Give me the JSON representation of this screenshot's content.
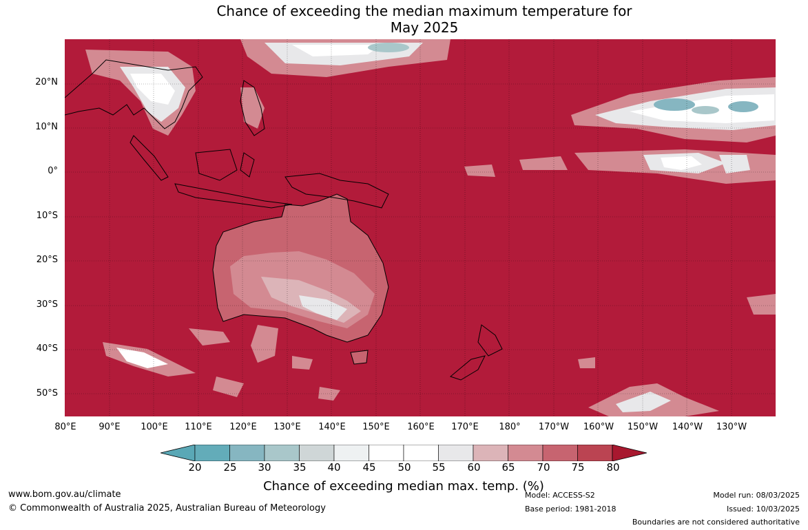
{
  "title": {
    "line1": "Chance of exceeding the median maximum temperature for",
    "line2": "May 2025"
  },
  "map": {
    "background_color": "#b21b3a",
    "lat_labels": [
      "20°N",
      "10°N",
      "0°",
      "10°S",
      "20°S",
      "30°S",
      "40°S",
      "50°S"
    ],
    "lon_labels": [
      "80°E",
      "90°E",
      "100°E",
      "110°E",
      "120°E",
      "130°E",
      "140°E",
      "150°E",
      "160°E",
      "170°E",
      "180°",
      "170°W",
      "160°W",
      "150°W",
      "140°W",
      "130°W"
    ],
    "regions": [
      "Australia",
      "New Zealand",
      "Papua New Guinea",
      "Indonesia",
      "Southeast Asia"
    ]
  },
  "colorbar": {
    "ticks": [
      "20",
      "25",
      "30",
      "35",
      "40",
      "45",
      "50",
      "55",
      "60",
      "65",
      "70",
      "75",
      "80"
    ],
    "colors": [
      "#5aa8b6",
      "#63acb9",
      "#86b6c1",
      "#a9c7ca",
      "#cfd6d7",
      "#eef1f2",
      "#ffffff",
      "#ffffff",
      "#e8e8ea",
      "#dcb4b8",
      "#d38a92",
      "#c76470",
      "#bb4452",
      "#a8182f"
    ],
    "label": "Chance of exceeding median max. temp. (%)"
  },
  "footer": {
    "website": "www.bom.gov.au/climate",
    "copyright": "© Commonwealth of Australia 2025, Australian Bureau of Meteorology",
    "model": "Model: ACCESS-S2",
    "base_period": "Base period: 1981-2018",
    "model_run": "Model run: 08/03/2025",
    "issued": "Issued: 10/03/2025",
    "disclaimer": "Boundaries are not considered authoritative"
  }
}
